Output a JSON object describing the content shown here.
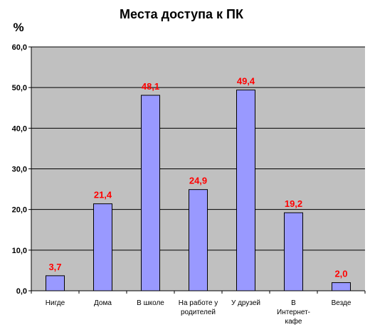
{
  "chart_data": {
    "type": "bar",
    "title": "Места доступа к ПК",
    "ylabel": "%",
    "categories": [
      [
        "Нигде"
      ],
      [
        "Дома"
      ],
      [
        "В школе"
      ],
      [
        "На работе у",
        "родителей"
      ],
      [
        "У друзей"
      ],
      [
        "В",
        "Интернет-",
        "кафе"
      ],
      [
        "Везде"
      ]
    ],
    "values": [
      3.7,
      21.4,
      48.1,
      24.9,
      49.4,
      19.2,
      2.0
    ],
    "data_labels": [
      "3,7",
      "21,4",
      "48,1",
      "24,9",
      "49,4",
      "19,2",
      "2,0"
    ],
    "ylim": [
      0,
      60
    ],
    "yticks": [
      0,
      10,
      20,
      30,
      40,
      50,
      60
    ],
    "ytick_labels": [
      "0,0",
      "10,0",
      "20,0",
      "30,0",
      "40,0",
      "50,0",
      "60,0"
    ],
    "grid": true,
    "legend": "none",
    "colors": {
      "plot_bg": "#c0c0c0",
      "bar_fill": "#9999ff",
      "bar_stroke": "#000000",
      "gridline": "#000000",
      "data_label": "#ff0000"
    }
  }
}
